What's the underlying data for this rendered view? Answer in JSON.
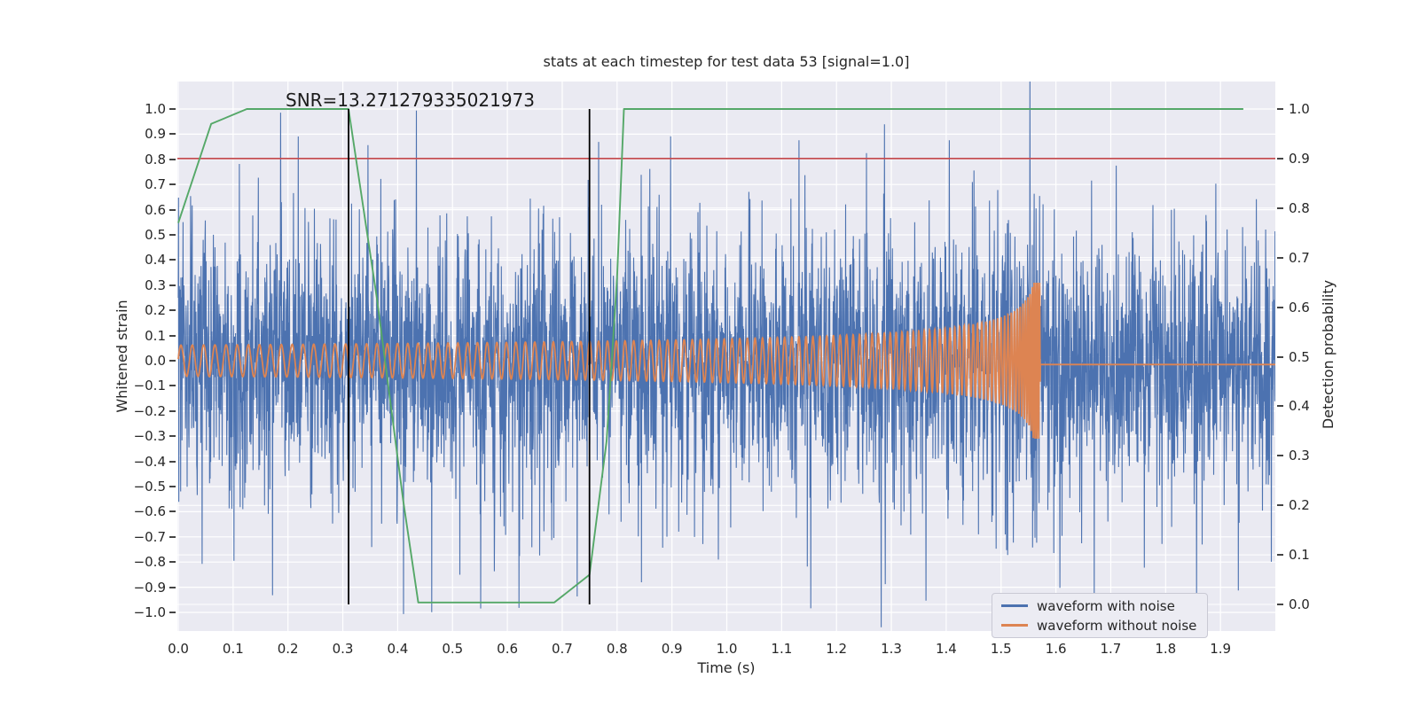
{
  "chart_data": {
    "type": "line",
    "title": "stats at each timestep for test data 53 [signal=1.0]",
    "annotation": {
      "text": "SNR=13.271279335021973",
      "x_time": 0.19,
      "y_strain": 1.0
    },
    "xlabel": "Time (s)",
    "ylabel_left": "Whitened strain",
    "ylabel_right": "Detection probability",
    "xlim": [
      0.0,
      2.0
    ],
    "ylim_left": [
      -1.075,
      1.11
    ],
    "ylim_right": [
      -0.054,
      1.056
    ],
    "grid": true,
    "x_ticks": {
      "values": [
        0.0,
        0.1,
        0.2,
        0.3,
        0.4,
        0.5,
        0.6,
        0.7,
        0.8,
        0.9,
        1.0,
        1.1,
        1.2,
        1.3,
        1.4,
        1.5,
        1.6,
        1.7,
        1.8,
        1.9
      ],
      "labels": [
        "0.0",
        "0.1",
        "0.2",
        "0.3",
        "0.4",
        "0.5",
        "0.6",
        "0.7",
        "0.8",
        "0.9",
        "1.0",
        "1.1",
        "1.2",
        "1.3",
        "1.4",
        "1.5",
        "1.6",
        "1.7",
        "1.8",
        "1.9"
      ]
    },
    "y_left_ticks": {
      "values": [
        1.0,
        0.9,
        0.8,
        0.7,
        0.6,
        0.5,
        0.4,
        0.3,
        0.2,
        0.1,
        0.0,
        -0.1,
        -0.2,
        -0.3,
        -0.4,
        -0.5,
        -0.6,
        -0.7,
        -0.8,
        -0.9,
        -1.0
      ],
      "labels": [
        "1.0",
        "0.9",
        "0.8",
        "0.7",
        "0.6",
        "0.5",
        "0.4",
        "0.3",
        "0.2",
        "0.1",
        "0.0",
        "−0.1",
        "−0.2",
        "−0.3",
        "−0.4",
        "−0.5",
        "−0.6",
        "−0.7",
        "−0.8",
        "−0.9",
        "−1.0"
      ]
    },
    "y_right_ticks": {
      "values": [
        1.0,
        0.9,
        0.8,
        0.7,
        0.6,
        0.5,
        0.4,
        0.3,
        0.2,
        0.1,
        0.0
      ],
      "labels": [
        "1.0",
        "0.9",
        "0.8",
        "0.7",
        "0.6",
        "0.5",
        "0.4",
        "0.3",
        "0.2",
        "0.1",
        "0.0"
      ]
    },
    "threshold_line": {
      "axis": "right",
      "value": 0.9,
      "color": "#c44e52"
    },
    "event_vlines": {
      "x_values": [
        0.3105,
        0.7497
      ],
      "color": "#000000",
      "span_axis": "right",
      "span": [
        0.0,
        1.0
      ]
    },
    "detection_probability_series": {
      "name": "detection probability",
      "axis": "right",
      "color": "#55a868",
      "points": [
        [
          0.0,
          0.77
        ],
        [
          0.06,
          0.97
        ],
        [
          0.125,
          1.0
        ],
        [
          0.3105,
          1.0
        ],
        [
          0.3625,
          0.615
        ],
        [
          0.41,
          0.21
        ],
        [
          0.4375,
          0.004
        ],
        [
          0.6855,
          0.004
        ],
        [
          0.7497,
          0.06
        ],
        [
          0.781,
          0.33
        ],
        [
          0.8,
          0.66
        ],
        [
          0.8125,
          1.0
        ],
        [
          1.9417,
          1.0
        ]
      ]
    },
    "waveform_with_noise": {
      "name": "waveform with noise",
      "axis": "left",
      "color": "#4c72b0",
      "representation": "procedural-noise-plus-chirp",
      "samples": 4096,
      "noise_sigma": 0.23,
      "noise_tail": 0.035,
      "clip": 0.95,
      "seed": 53
    },
    "waveform_without_noise": {
      "name": "waveform without noise",
      "axis": "left",
      "color": "#dd8452",
      "representation": "procedural-chirp",
      "samples": 6000,
      "chirp": {
        "f0_hz": 48,
        "t_merger_s": 1.5715,
        "amp0": 0.062,
        "amp_exponent": -0.3333,
        "freq_exponent": -0.375,
        "amp_cap": 0.31,
        "freq_cap_hz": 300,
        "post_merger_value": -0.015
      }
    },
    "legend": {
      "position": "lower right",
      "entries": [
        {
          "label": "waveform with noise",
          "color": "#4c72b0"
        },
        {
          "label": "waveform without noise",
          "color": "#dd8452"
        }
      ]
    }
  },
  "style": {
    "figure_bg": "#ffffff",
    "axes_bg": "#eaeaf2",
    "grid_color": "#ffffff",
    "text_color": "#262626",
    "tick_color": "#444444",
    "legend_bg": "#ececf3",
    "legend_border": "#c9c9d4"
  }
}
